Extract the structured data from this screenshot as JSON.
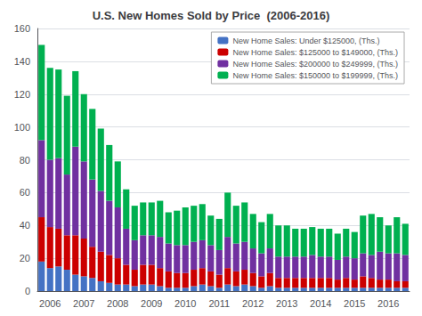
{
  "chart_data": {
    "type": "bar",
    "title": "U.S. New Homes Sold by Price  (2006-2016)",
    "stacked": true,
    "grid": true,
    "legend": "upper right",
    "categories": [
      null,
      "2006",
      null,
      null,
      null,
      "2007",
      null,
      null,
      null,
      "2008",
      null,
      null,
      null,
      "2009",
      null,
      null,
      null,
      "2010",
      null,
      null,
      null,
      "2011",
      null,
      null,
      null,
      "2012",
      null,
      null,
      null,
      "2013",
      null,
      null,
      null,
      "2014",
      null,
      null,
      null,
      "2015",
      null,
      null,
      null,
      "2016",
      null,
      null
    ],
    "ylim": [
      0,
      160
    ],
    "yticks": [
      0,
      20,
      40,
      60,
      80,
      100,
      120,
      140,
      160
    ],
    "series": [
      {
        "name": "New Home Sales: Under $125000, (Ths.)",
        "color": "#4472c4",
        "values": [
          18,
          14,
          15,
          13,
          10,
          9,
          8,
          6,
          5,
          4,
          4,
          3,
          4,
          4,
          3,
          2,
          2,
          2,
          3,
          4,
          3,
          2,
          4,
          3,
          4,
          3,
          2,
          3,
          2,
          2,
          2,
          2,
          2,
          2,
          2,
          2,
          2,
          2,
          2,
          2,
          2,
          2,
          2,
          2
        ]
      },
      {
        "name": "New Home Sales: $125000 to $149000, (Ths.)",
        "color": "#cc0000",
        "values": [
          27,
          25,
          23,
          21,
          24,
          23,
          19,
          18,
          17,
          16,
          12,
          10,
          12,
          12,
          11,
          10,
          9,
          9,
          10,
          10,
          9,
          8,
          10,
          9,
          9,
          8,
          7,
          8,
          6,
          6,
          6,
          6,
          6,
          6,
          6,
          5,
          6,
          5,
          7,
          6,
          5,
          5,
          4,
          4
        ]
      },
      {
        "name": "New Home Sales: $200000 to $249999, (Ths.)",
        "color": "#7030a0",
        "values": [
          47,
          41,
          43,
          37,
          54,
          47,
          41,
          37,
          33,
          31,
          22,
          18,
          18,
          18,
          19,
          17,
          17,
          17,
          17,
          17,
          16,
          15,
          19,
          17,
          17,
          15,
          14,
          15,
          13,
          13,
          13,
          13,
          14,
          13,
          13,
          12,
          13,
          13,
          14,
          14,
          17,
          16,
          17,
          16
        ]
      },
      {
        "name": "New Home Sales: $150000 to $199999, (Ths.)",
        "color": "#00b050",
        "values": [
          58,
          56,
          54,
          48,
          46,
          41,
          43,
          38,
          34,
          28,
          24,
          21,
          20,
          20,
          22,
          19,
          21,
          23,
          22,
          22,
          18,
          19,
          27,
          23,
          24,
          21,
          19,
          21,
          19,
          19,
          17,
          17,
          17,
          17,
          17,
          16,
          17,
          16,
          23,
          25,
          21,
          17,
          22,
          19
        ]
      }
    ]
  }
}
